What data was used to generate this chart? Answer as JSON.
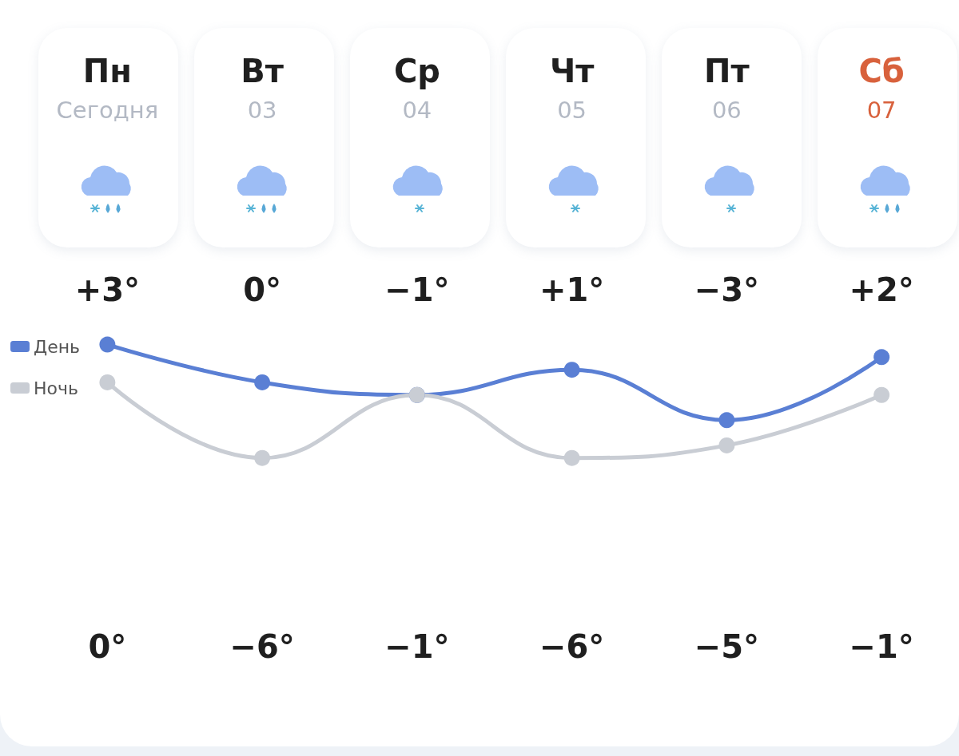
{
  "chart_data": {
    "type": "line",
    "categories": [
      "Пн\nСегодня",
      "Вт\n03",
      "Ср\n04",
      "Чт\n05",
      "Пт\n06",
      "Сб\n07"
    ],
    "marker": "circle",
    "legend": "left",
    "series": [
      {
        "name": "День",
        "color": "#5a7fd4",
        "values": [
          3,
          0,
          -1,
          1,
          -3,
          2
        ],
        "value_labels": [
          "+3°",
          "0°",
          "−1°",
          "+1°",
          "−3°",
          "+2°"
        ]
      },
      {
        "name": "Ночь",
        "color": "#c9cdd4",
        "values": [
          0,
          -6,
          -1,
          -6,
          -5,
          -1
        ],
        "value_labels": [
          "0°",
          "−6°",
          "−1°",
          "−6°",
          "−5°",
          "−1°"
        ]
      }
    ]
  }
}
